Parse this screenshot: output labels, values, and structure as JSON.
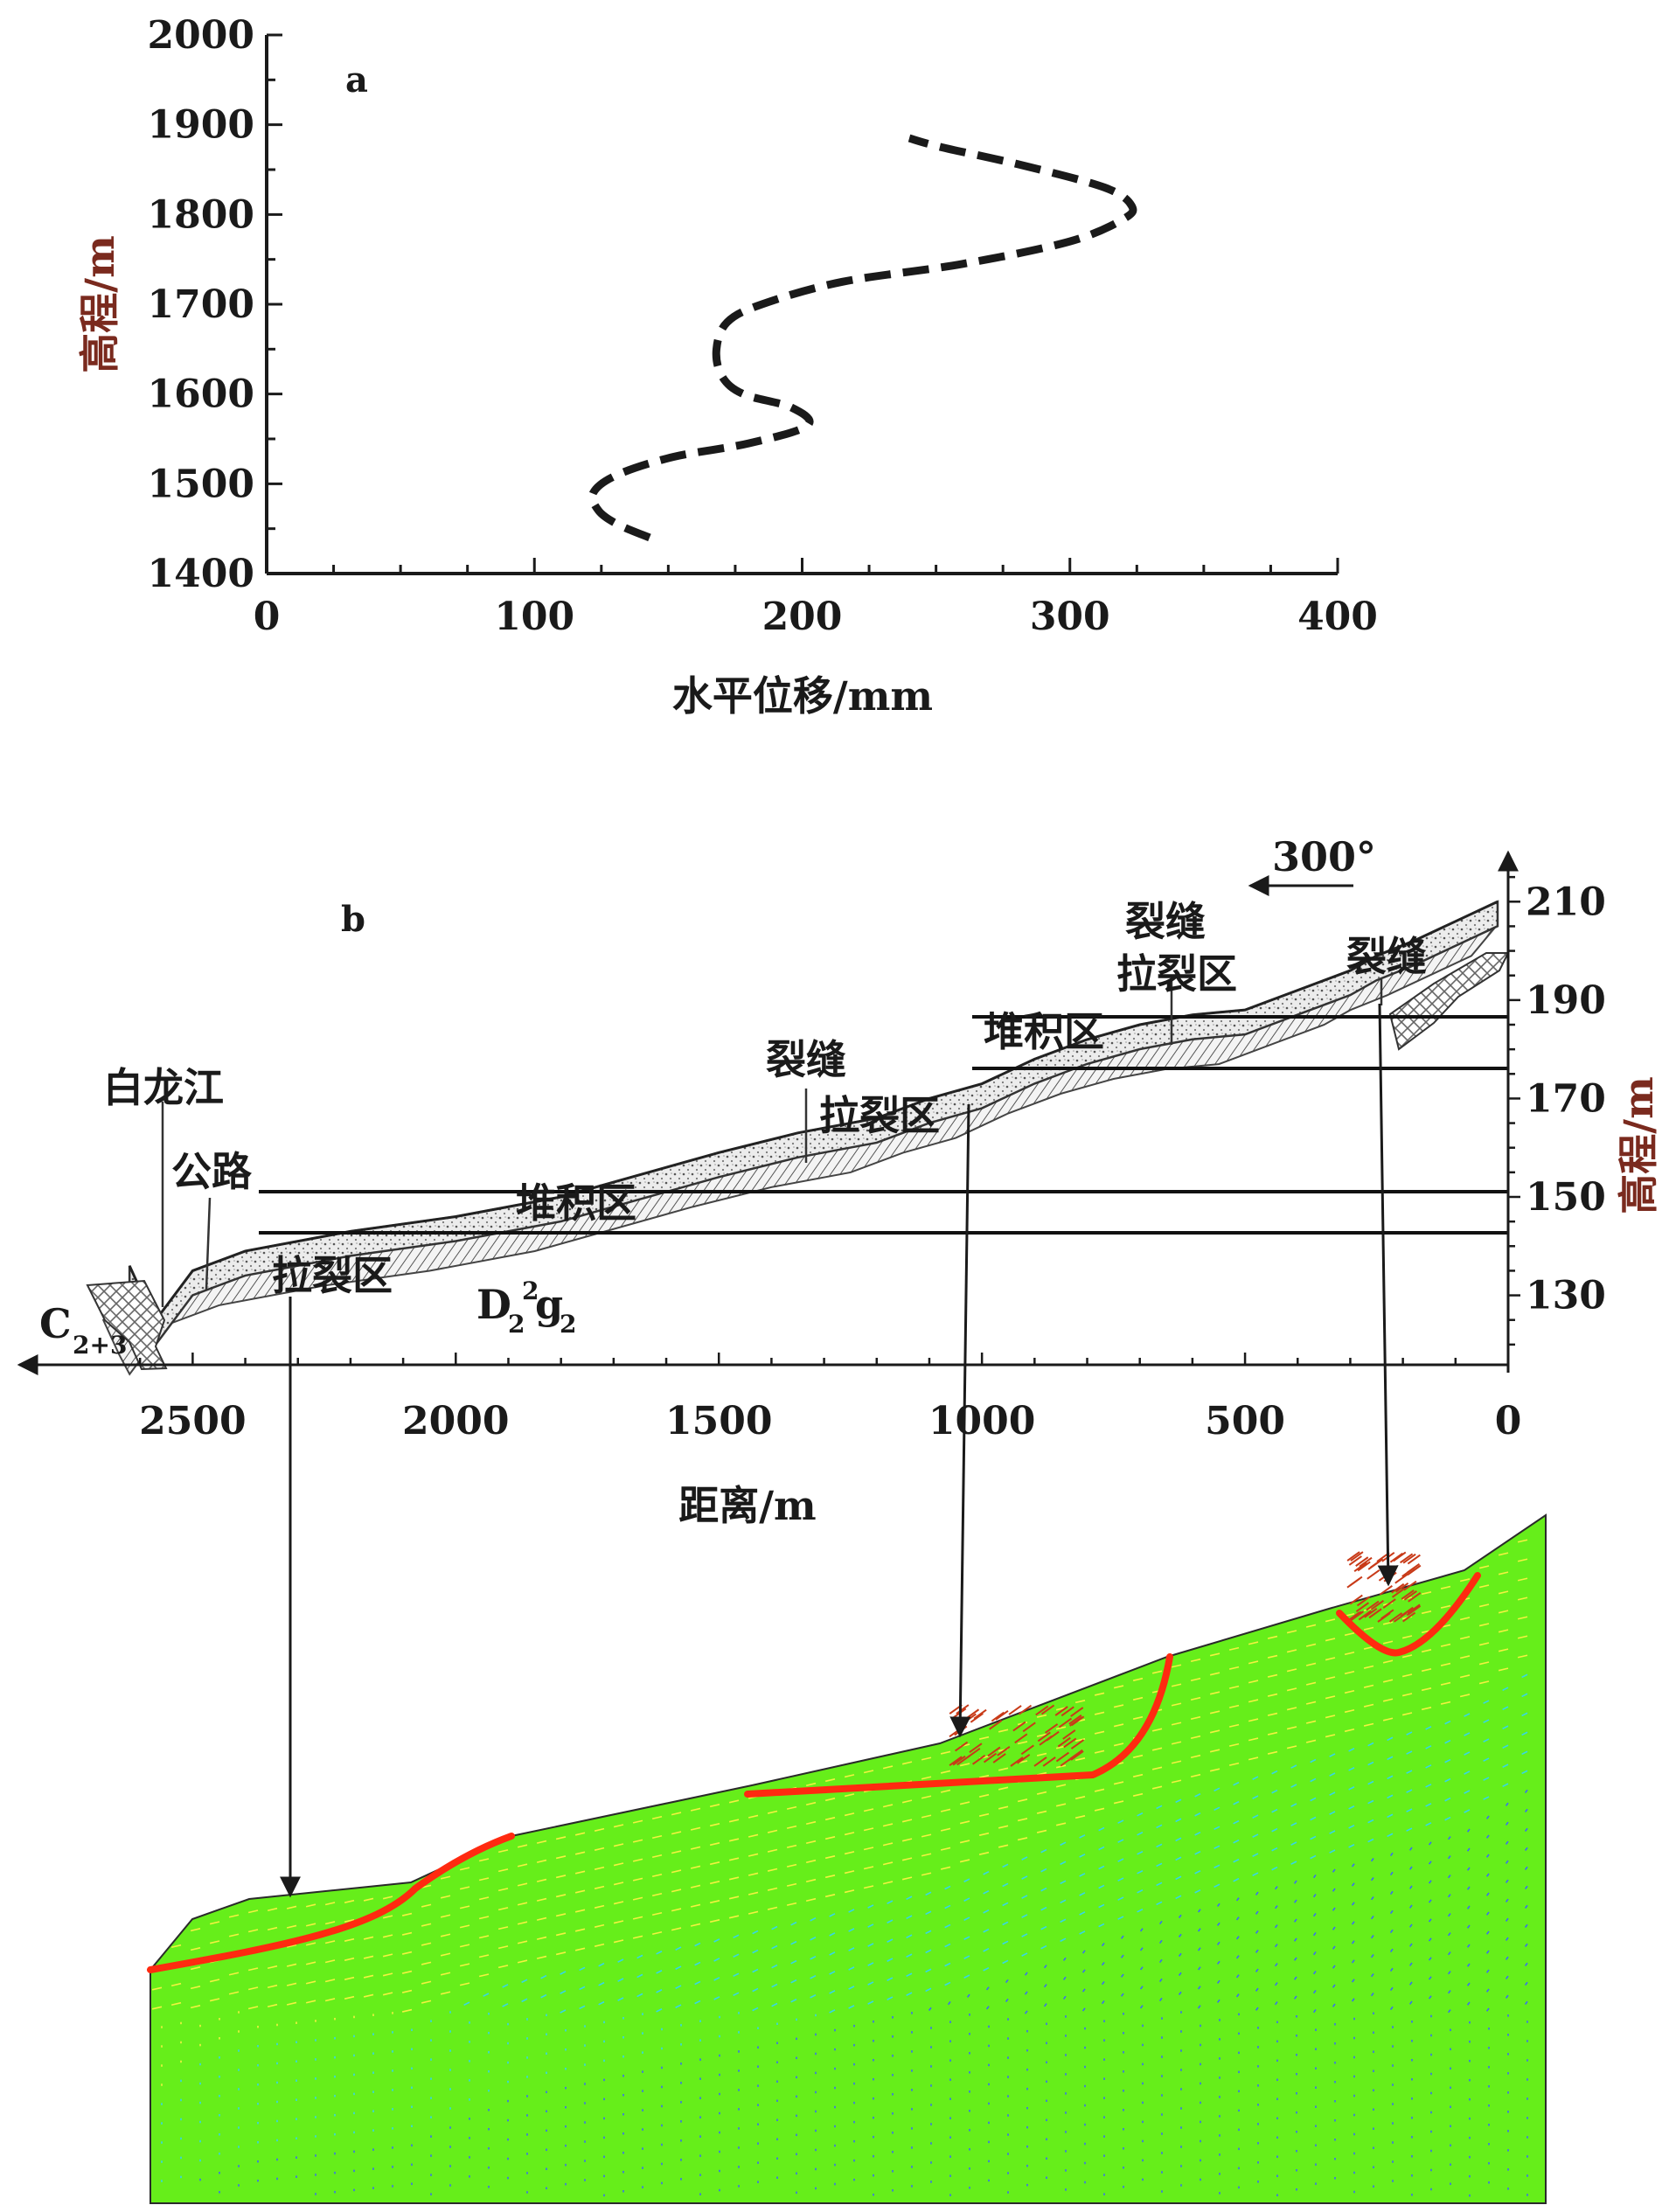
{
  "colors": {
    "ink": "#1a1a1a",
    "brown": "#7a2a1e",
    "slope_green": "#66ee1a",
    "slip_red": "#ff2a10",
    "vector_blue": "#3a6ef0"
  },
  "panel_a": {
    "label": "a",
    "chart_data": {
      "type": "line",
      "style": "dashed",
      "xlabel": "水平位移/mm",
      "ylabel": "高程/m",
      "xlim": [
        0,
        400
      ],
      "ylim": [
        1400,
        2000
      ],
      "xticks": [
        "0",
        "100",
        "200",
        "300",
        "400"
      ],
      "yticks": [
        "1400",
        "1500",
        "1600",
        "1700",
        "1800",
        "1900",
        "2000"
      ],
      "series": [
        {
          "x": [
            143,
            131,
            124,
            122,
            131,
            152,
            180,
            202,
            196,
            178,
            170,
            168,
            172,
            185,
            215,
            260,
            300,
            320,
            323,
            313,
            282,
            252,
            240
          ],
          "y": [
            1440,
            1455,
            1470,
            1490,
            1510,
            1530,
            1545,
            1565,
            1585,
            1600,
            1620,
            1650,
            1680,
            1700,
            1725,
            1745,
            1770,
            1795,
            1810,
            1830,
            1855,
            1875,
            1885
          ]
        }
      ]
    }
  },
  "panel_b": {
    "label": "b",
    "chart_data": {
      "type": "area",
      "xlabel": "距离/m",
      "ylabel": "高程/m",
      "xlim": [
        2700,
        0
      ],
      "ylim": [
        115,
        220
      ],
      "xticks": [
        "2500",
        "2000",
        "1500",
        "1000",
        "500",
        "0"
      ],
      "yticks": [
        "130",
        "150",
        "170",
        "190",
        "210"
      ],
      "series": [
        {
          "name": "ground_surface",
          "x": [
            2620,
            2590,
            2570,
            2500,
            2400,
            2200,
            2000,
            1800,
            1600,
            1500,
            1350,
            1200,
            1100,
            1000,
            900,
            800,
            700,
            600,
            500,
            400,
            300,
            250,
            180,
            100,
            20
          ],
          "y": [
            136,
            129,
            125,
            135,
            139,
            143,
            146,
            150,
            156,
            159,
            163,
            166,
            170,
            173,
            178,
            182,
            185,
            187,
            188,
            192,
            196,
            199,
            202,
            206,
            210
          ]
        }
      ]
    },
    "direction": "300°",
    "labels": {
      "river": "白龙江",
      "road": "公路",
      "tension_1": "拉裂区",
      "deposit_1": "堆积区",
      "crack_2": "裂缝",
      "tension_2": "拉裂区",
      "deposit_2": "堆积区",
      "crack_3": "裂缝",
      "tension_3": "拉裂区",
      "crack_4": "裂缝",
      "strata_c_main": "C",
      "strata_c_sub": "2+3",
      "strata_d_main": "D",
      "strata_d_sub1": "2",
      "strata_d_sup": "2",
      "strata_d_g": "g",
      "strata_d_sub2": "2"
    }
  }
}
